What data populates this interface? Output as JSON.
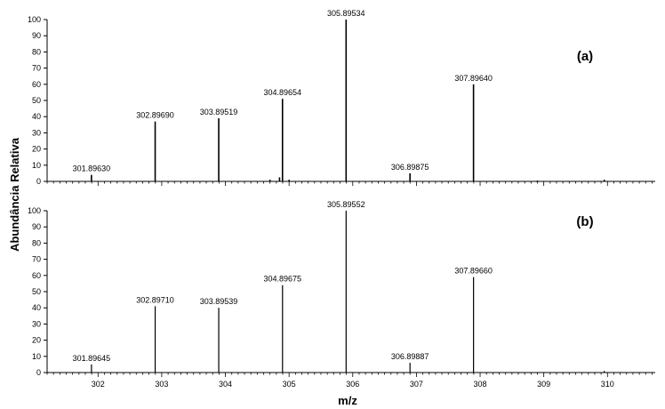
{
  "figure": {
    "ylabel": "Abundância Relativa",
    "xlabel": "m/z"
  },
  "chart_data": [
    {
      "type": "bar",
      "panel_label": "(a)",
      "xlim": [
        301.2,
        310.75
      ],
      "ylim": [
        0,
        100
      ],
      "yticks": [
        0,
        10,
        20,
        30,
        40,
        50,
        60,
        70,
        80,
        90,
        100
      ],
      "xticks": [],
      "grid": false,
      "peaks": [
        {
          "x": 301.8963,
          "y": 4,
          "label": "301.89630"
        },
        {
          "x": 302.8969,
          "y": 37,
          "label": "302.89690"
        },
        {
          "x": 303.89519,
          "y": 39,
          "label": "303.89519"
        },
        {
          "x": 304.89654,
          "y": 51,
          "label": "304.89654"
        },
        {
          "x": 305.89534,
          "y": 100,
          "label": "305.89534"
        },
        {
          "x": 306.89875,
          "y": 5,
          "label": "306.89875"
        },
        {
          "x": 307.8964,
          "y": 60,
          "label": "307.89640"
        },
        {
          "x": 304.7,
          "y": 1,
          "label": ""
        },
        {
          "x": 304.85,
          "y": 2.5,
          "label": ""
        },
        {
          "x": 305.0,
          "y": 1,
          "label": ""
        },
        {
          "x": 308.9,
          "y": 0.5,
          "label": ""
        },
        {
          "x": 309.95,
          "y": 1,
          "label": ""
        }
      ]
    },
    {
      "type": "bar",
      "panel_label": "(b)",
      "xlim": [
        301.2,
        310.75
      ],
      "ylim": [
        0,
        100
      ],
      "yticks": [
        0,
        10,
        20,
        30,
        40,
        50,
        60,
        70,
        80,
        90,
        100
      ],
      "xticks": [
        302,
        303,
        304,
        305,
        306,
        307,
        308,
        309,
        310
      ],
      "grid": false,
      "peaks": [
        {
          "x": 301.89645,
          "y": 5,
          "label": "301.89645"
        },
        {
          "x": 302.8971,
          "y": 41,
          "label": "302.89710"
        },
        {
          "x": 303.89539,
          "y": 40,
          "label": "303.89539"
        },
        {
          "x": 304.89675,
          "y": 54,
          "label": "304.89675"
        },
        {
          "x": 305.89552,
          "y": 100,
          "label": "305.89552"
        },
        {
          "x": 306.89887,
          "y": 6,
          "label": "306.89887"
        },
        {
          "x": 307.8966,
          "y": 59,
          "label": "307.89660"
        },
        {
          "x": 309.95,
          "y": 1,
          "label": ""
        }
      ]
    }
  ]
}
